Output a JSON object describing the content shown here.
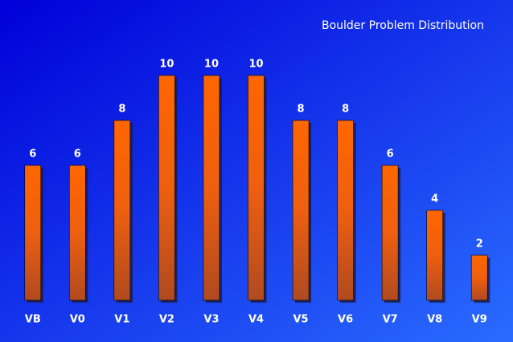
{
  "chart_data": {
    "type": "bar",
    "title": "Boulder Problem Distribution",
    "categories": [
      "VB",
      "V0",
      "V1",
      "V2",
      "V3",
      "V4",
      "V5",
      "V6",
      "V7",
      "V8",
      "V9"
    ],
    "values": [
      6,
      6,
      8,
      10,
      10,
      10,
      8,
      8,
      6,
      4,
      2
    ],
    "color": "#ff6600",
    "ylim": [
      0,
      10
    ]
  }
}
